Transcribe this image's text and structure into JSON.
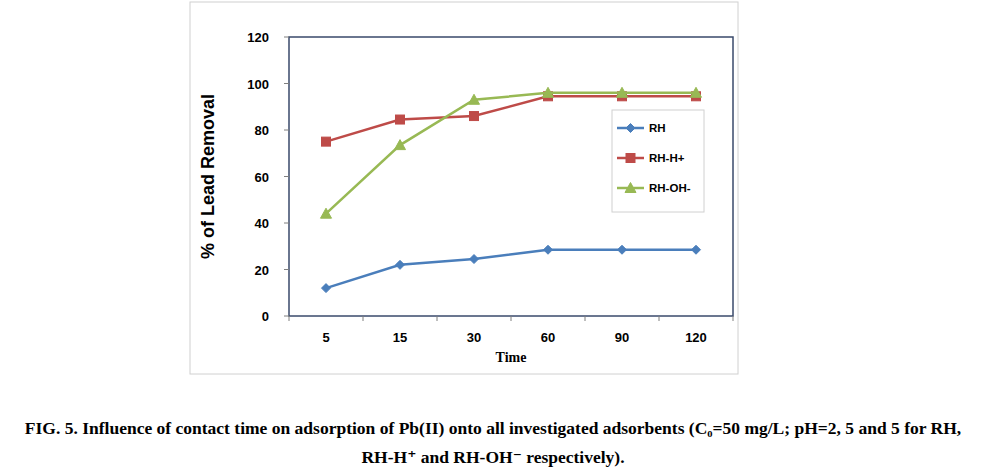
{
  "chart_data": {
    "type": "line",
    "title": "FIG. 5. Influence of contact time on adsorption of Pb(II) onto all investigated adsorbents (C₀=50 mg/L; pH=2, 5 and 5 for RH, RH-H⁺ and RH-OH⁻ respectively).",
    "x_label": "Time",
    "y_label": "% of Lead Removal",
    "categories": [
      "5",
      "15",
      "30",
      "60",
      "90",
      "120"
    ],
    "series": [
      {
        "name": "RH",
        "color": "#4a7ebb",
        "marker": "diamond",
        "values": [
          12,
          22,
          24.5,
          28.5,
          28.5,
          28.5
        ]
      },
      {
        "name": "RH-H+",
        "color": "#be4b48",
        "marker": "square",
        "values": [
          75,
          84.5,
          86,
          94.5,
          94.5,
          94.5
        ]
      },
      {
        "name": "RH-OH-",
        "color": "#98b954",
        "marker": "triangle",
        "values": [
          44,
          73.5,
          93,
          96,
          96,
          96
        ]
      }
    ],
    "ylim": [
      0,
      120
    ],
    "yticks": [
      0,
      20,
      40,
      60,
      80,
      100,
      120
    ],
    "grid": false,
    "legend": "right"
  }
}
